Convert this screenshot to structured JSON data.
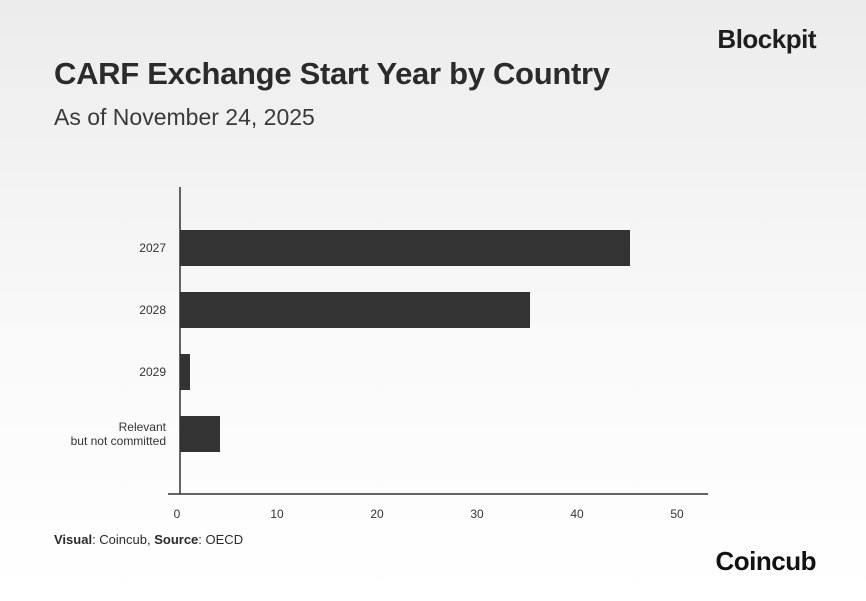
{
  "header": {
    "brand": "Blockpit",
    "title": "CARF Exchange Start Year by Country",
    "subtitle": "As of November 24, 2025"
  },
  "footer": {
    "visual_label": "Visual",
    "visual_value": ": Coincub, ",
    "source_label": "Source",
    "source_value": ": OECD",
    "brand": "Coincub"
  },
  "colors": {
    "bar": "#333333",
    "axis": "#333333"
  },
  "chart_data": {
    "type": "bar",
    "orientation": "horizontal",
    "categories": [
      "2027",
      "2028",
      "2029",
      "Relevant\nbut not committed"
    ],
    "values": [
      45,
      35,
      1,
      4
    ],
    "xlim": [
      0,
      53
    ],
    "xticks": [
      0,
      10,
      20,
      30,
      40,
      50
    ],
    "title": "CARF Exchange Start Year by Country",
    "subtitle": "As of November 24, 2025",
    "xlabel": "",
    "ylabel": "",
    "grid": false,
    "legend": "none"
  }
}
